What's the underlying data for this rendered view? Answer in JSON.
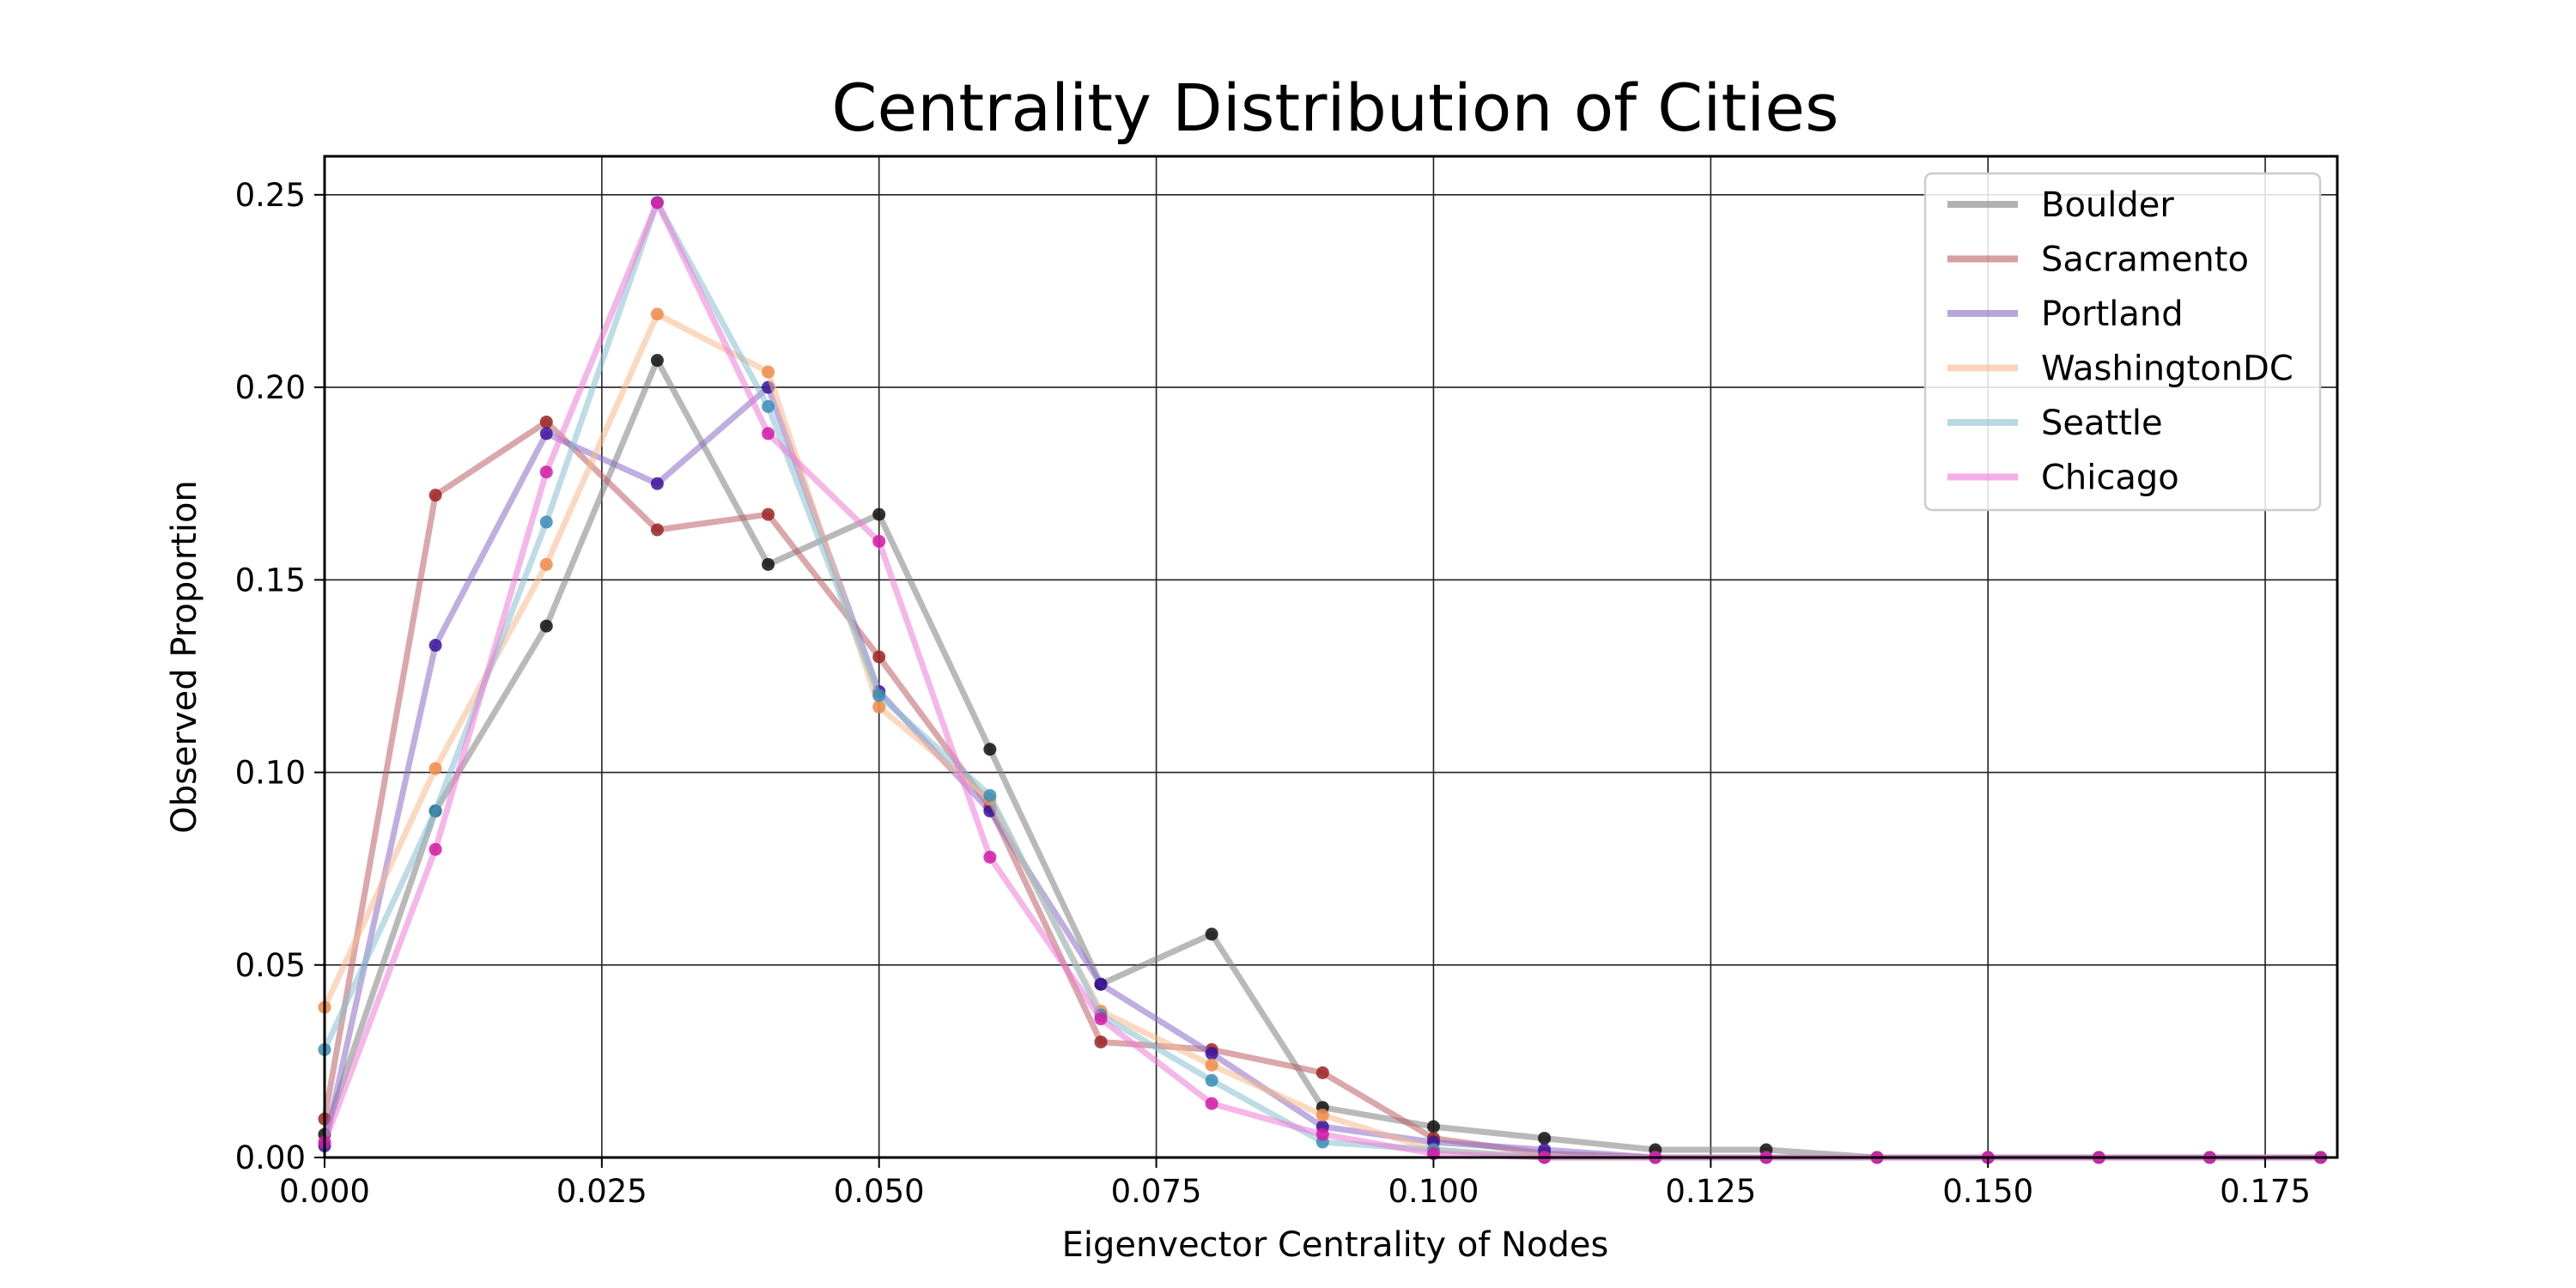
{
  "chart_data": {
    "type": "line",
    "title": "Centrality Distribution of Cities",
    "xlabel": "Eigenvector Centrality of Nodes",
    "ylabel": "Observed Proportion",
    "xlim": [
      0,
      0.1815
    ],
    "ylim": [
      0,
      0.26
    ],
    "xticks": [
      0,
      0.025,
      0.05,
      0.075,
      0.1,
      0.125,
      0.15,
      0.175
    ],
    "xtick_labels": [
      "0.000",
      "0.025",
      "0.050",
      "0.075",
      "0.100",
      "0.125",
      "0.150",
      "0.175"
    ],
    "yticks": [
      0,
      0.05,
      0.1,
      0.15,
      0.2,
      0.25
    ],
    "ytick_labels": [
      "0.00",
      "0.05",
      "0.10",
      "0.15",
      "0.20",
      "0.25"
    ],
    "grid": true,
    "legend_position": "top-right",
    "series": [
      {
        "name": "Boulder",
        "line_color": "#7f7f7f",
        "marker_color": "#111111",
        "x": [
          0,
          0.01,
          0.02,
          0.03,
          0.04,
          0.05,
          0.06,
          0.07,
          0.08,
          0.09,
          0.1,
          0.11,
          0.12,
          0.13,
          0.14,
          0.15,
          0.16,
          0.17,
          0.18
        ],
        "y": [
          0.006,
          0.09,
          0.138,
          0.207,
          0.154,
          0.167,
          0.106,
          0.045,
          0.058,
          0.013,
          0.008,
          0.005,
          0.002,
          0.002,
          0,
          0,
          0,
          0,
          0
        ]
      },
      {
        "name": "Sacramento",
        "line_color": "#bc5f64",
        "marker_color": "#9b2423",
        "x": [
          0,
          0.01,
          0.02,
          0.03,
          0.04,
          0.05,
          0.06,
          0.07,
          0.08,
          0.09,
          0.1,
          0.11,
          0.12,
          0.13,
          0.14,
          0.15,
          0.16,
          0.17,
          0.18
        ],
        "y": [
          0.01,
          0.172,
          0.191,
          0.163,
          0.167,
          0.13,
          0.091,
          0.03,
          0.028,
          0.022,
          0.005,
          0.001,
          0,
          0,
          0,
          0,
          0,
          0,
          0
        ]
      },
      {
        "name": "Portland",
        "line_color": "#8b6bc7",
        "marker_color": "#3a139a",
        "x": [
          0,
          0.01,
          0.02,
          0.03,
          0.04,
          0.05,
          0.06,
          0.07,
          0.08,
          0.09,
          0.1,
          0.11,
          0.12,
          0.13,
          0.14,
          0.15,
          0.16,
          0.17,
          0.18
        ],
        "y": [
          0.003,
          0.133,
          0.188,
          0.175,
          0.2,
          0.121,
          0.09,
          0.045,
          0.027,
          0.008,
          0.004,
          0.002,
          0,
          0,
          0,
          0,
          0,
          0,
          0
        ]
      },
      {
        "name": "WashingtonDC",
        "line_color": "#f7b98e",
        "marker_color": "#f08a49",
        "x": [
          0,
          0.01,
          0.02,
          0.03,
          0.04,
          0.05,
          0.06,
          0.07,
          0.08,
          0.09,
          0.1,
          0.11,
          0.12,
          0.13,
          0.14,
          0.15,
          0.16,
          0.17,
          0.18
        ],
        "y": [
          0.039,
          0.101,
          0.154,
          0.219,
          0.204,
          0.117,
          0.093,
          0.038,
          0.024,
          0.011,
          0.002,
          0,
          0,
          0,
          0,
          0,
          0,
          0,
          0
        ]
      },
      {
        "name": "Seattle",
        "line_color": "#88c0d0",
        "marker_color": "#3b8db7",
        "x": [
          0,
          0.01,
          0.02,
          0.03,
          0.04,
          0.05,
          0.06,
          0.07,
          0.08,
          0.09,
          0.1,
          0.11,
          0.12,
          0.13,
          0.14,
          0.15,
          0.16,
          0.17,
          0.18
        ],
        "y": [
          0.028,
          0.09,
          0.165,
          0.248,
          0.195,
          0.12,
          0.094,
          0.037,
          0.02,
          0.004,
          0.002,
          0,
          0,
          0,
          0,
          0,
          0,
          0,
          0
        ]
      },
      {
        "name": "Chicago",
        "line_color": "#ec7ad6",
        "marker_color": "#d11aa5",
        "x": [
          0,
          0.01,
          0.02,
          0.03,
          0.04,
          0.05,
          0.06,
          0.07,
          0.08,
          0.09,
          0.1,
          0.11,
          0.12,
          0.13,
          0.14,
          0.15,
          0.16,
          0.17,
          0.18
        ],
        "y": [
          0.004,
          0.08,
          0.178,
          0.248,
          0.188,
          0.16,
          0.078,
          0.036,
          0.014,
          0.006,
          0.001,
          0,
          0,
          0,
          0,
          0,
          0,
          0,
          0
        ]
      }
    ]
  }
}
